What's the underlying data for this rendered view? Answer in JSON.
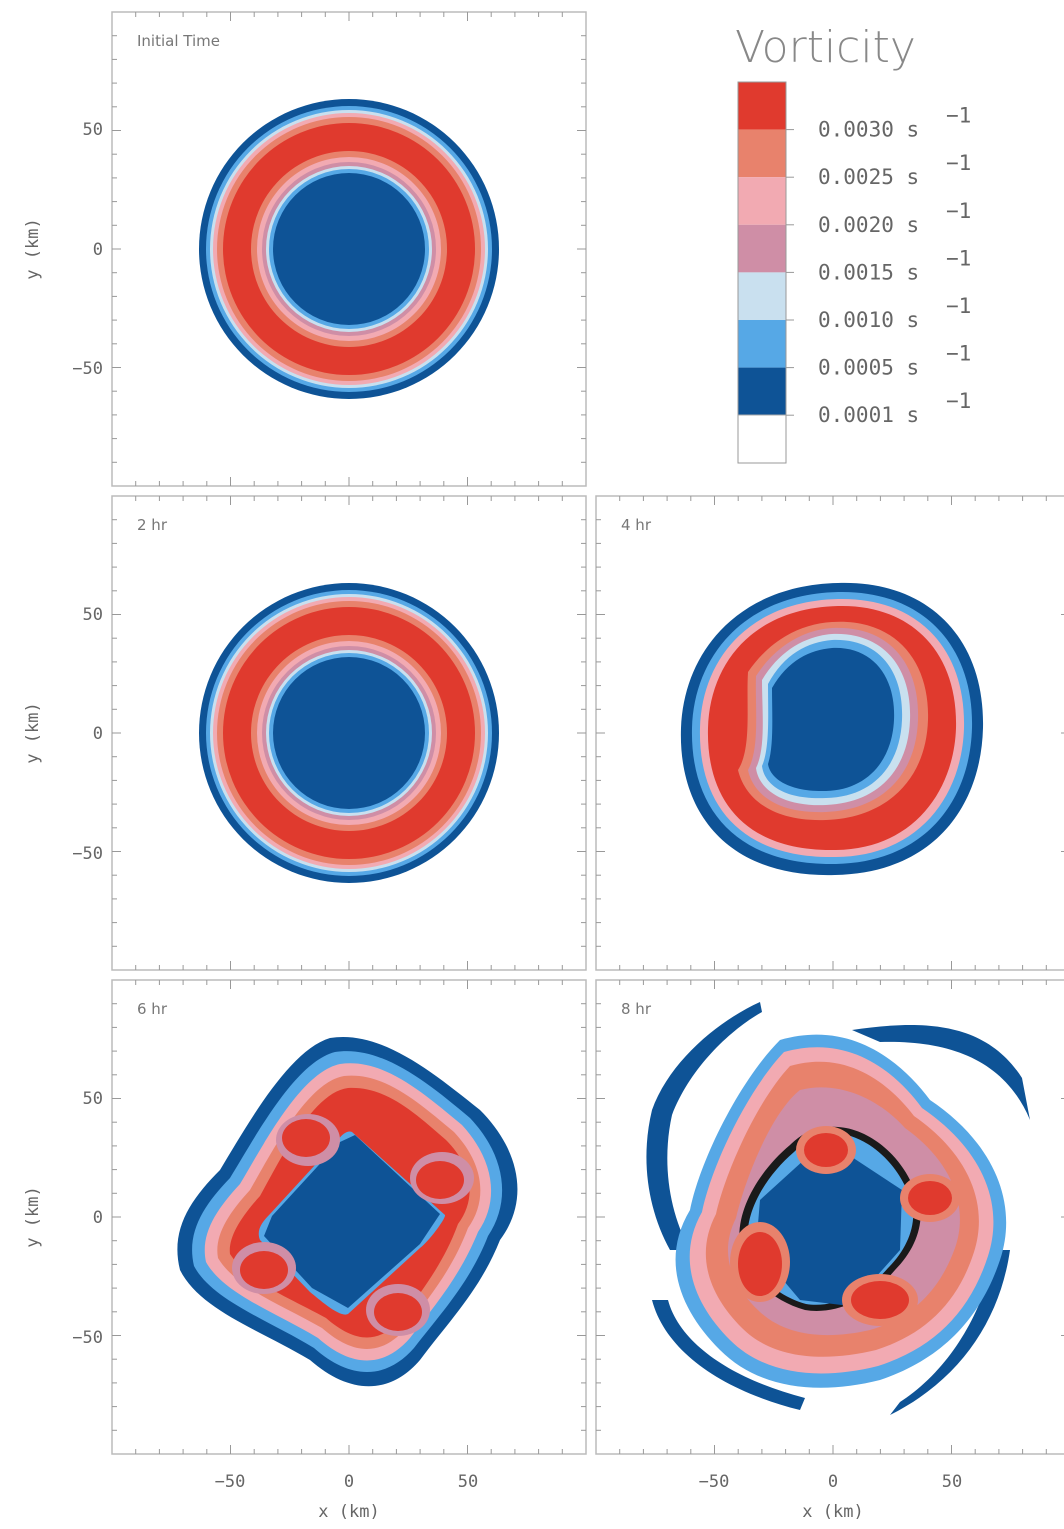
{
  "chart_data": [
    {
      "type": "heatmap",
      "panel": "initial",
      "title": "Initial Time",
      "ylabel": "y (km)",
      "xlabel": "",
      "xlim": [
        -100,
        100
      ],
      "ylim": [
        -100,
        100
      ],
      "yticks": [
        -50,
        0,
        50
      ],
      "xticks": []
    },
    {
      "type": "heatmap",
      "panel": "2hr",
      "title": "2 hr",
      "ylabel": "y (km)",
      "xlabel": "",
      "xlim": [
        -100,
        100
      ],
      "ylim": [
        -100,
        100
      ],
      "yticks": [
        -50,
        0,
        50
      ],
      "xticks": []
    },
    {
      "type": "heatmap",
      "panel": "4hr",
      "title": "4 hr",
      "ylabel": "",
      "xlabel": "",
      "xlim": [
        -100,
        100
      ],
      "ylim": [
        -100,
        100
      ],
      "yticks": [],
      "xticks": []
    },
    {
      "type": "heatmap",
      "panel": "6hr",
      "title": "6 hr",
      "ylabel": "y (km)",
      "xlabel": "x (km)",
      "xlim": [
        -100,
        100
      ],
      "ylim": [
        -100,
        100
      ],
      "yticks": [
        -50,
        0,
        50
      ],
      "xticks": [
        -50,
        0,
        50
      ]
    },
    {
      "type": "heatmap",
      "panel": "8hr",
      "title": "8 hr",
      "ylabel": "",
      "xlabel": "x (km)",
      "xlim": [
        -100,
        100
      ],
      "ylim": [
        -100,
        100
      ],
      "yticks": [],
      "xticks": [
        -50,
        0,
        50
      ]
    }
  ],
  "legend": {
    "title": "Vorticity",
    "position": "top-right",
    "unit": "s",
    "exponent": "−1",
    "levels": [
      {
        "value": "0.0030",
        "color": "#e03a2e"
      },
      {
        "value": "0.0025",
        "color": "#e8826c"
      },
      {
        "value": "0.0020",
        "color": "#f2aab2"
      },
      {
        "value": "0.0015",
        "color": "#cf8ea6"
      },
      {
        "value": "0.0010",
        "color": "#c9e0ef"
      },
      {
        "value": "0.0005",
        "color": "#56a8e6"
      },
      {
        "value": "0.0001",
        "color": "#0e5396"
      }
    ],
    "below_color": "#ffffff"
  },
  "colors": {
    "dark_blue": "#0e5396",
    "red": "#e03a2e"
  }
}
